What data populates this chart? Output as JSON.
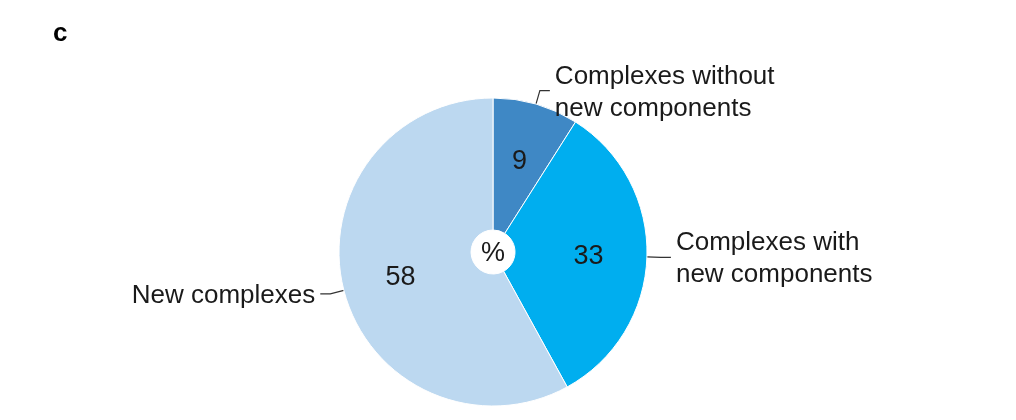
{
  "chart_data": {
    "type": "donut",
    "title": "c",
    "categories": [
      "Complexes without new components",
      "Complexes with new components",
      "New complexes"
    ],
    "values": [
      9,
      33,
      58
    ],
    "colors": [
      "#3f88c5",
      "#00aeef",
      "#bcd8f0"
    ],
    "data_labels": true,
    "annotations": [
      "%"
    ],
    "legend": false
  }
}
